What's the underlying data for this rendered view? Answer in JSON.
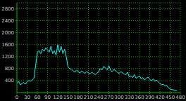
{
  "chart_data": {
    "type": "line",
    "color": "#00ffff",
    "grid": true,
    "x": [
      0,
      5,
      10,
      15,
      20,
      25,
      30,
      35,
      40,
      45,
      50,
      55,
      60,
      65,
      70,
      75,
      80,
      85,
      90,
      95,
      100,
      105,
      110,
      115,
      120,
      125,
      130,
      135,
      140,
      145,
      150,
      155,
      160,
      165,
      170,
      175,
      180,
      185,
      190,
      195,
      200,
      205,
      210,
      215,
      220,
      225,
      230,
      235,
      240,
      245,
      250,
      255,
      260,
      265,
      270,
      275,
      280,
      285,
      290,
      295,
      300,
      305,
      310,
      315,
      320,
      325,
      330,
      335,
      340,
      345,
      350,
      355,
      360,
      365,
      370,
      375,
      380,
      385,
      390,
      395,
      400,
      405,
      410,
      415,
      420,
      425,
      430,
      435,
      440,
      445,
      450,
      455,
      460,
      465,
      470
    ],
    "values": [
      300,
      380,
      260,
      300,
      340,
      280,
      360,
      400,
      380,
      420,
      480,
      900,
      1350,
      1400,
      1300,
      1450,
      1380,
      1500,
      1420,
      1350,
      1550,
      1300,
      1400,
      1250,
      1600,
      1350,
      1550,
      1300,
      1450,
      1200,
      850,
      800,
      780,
      720,
      680,
      750,
      700,
      650,
      720,
      680,
      640,
      700,
      660,
      620,
      680,
      640,
      600,
      650,
      700,
      800,
      760,
      880,
      820,
      760,
      900,
      740,
      700,
      780,
      720,
      680,
      640,
      700,
      660,
      620,
      600,
      680,
      520,
      560,
      500,
      600,
      480,
      520,
      560,
      460,
      500,
      420,
      480,
      520,
      440,
      400,
      460,
      380,
      420,
      360,
      300,
      260,
      280,
      220,
      240,
      160,
      120,
      100,
      90,
      80,
      60
    ],
    "xlim": [
      0,
      480
    ],
    "xticks": [
      0,
      30,
      60,
      90,
      120,
      150,
      180,
      210,
      240,
      270,
      300,
      330,
      360,
      390,
      420,
      450,
      480
    ],
    "ylim": [
      0,
      3000
    ],
    "yticks": [
      400,
      800,
      1200,
      1600,
      2000,
      2400,
      2800
    ]
  }
}
